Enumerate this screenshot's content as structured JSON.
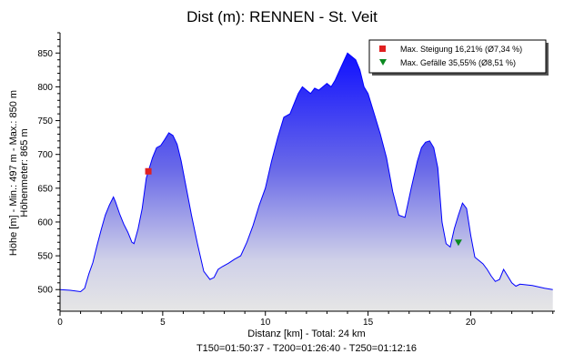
{
  "chart_data": {
    "type": "area",
    "title": "Dist (m): RENNEN - St. Veit",
    "xlabel": "Distanz [km] - Total: 24 km",
    "xlabel2": "T150=01:50:37 - T200=01:26:40 - T250=01:12:16",
    "ylabel": "Höhe [m] - Min.: 497 m - Max.: 850 m",
    "ylabel2": "Höhenmeter: 865 m",
    "xlim": [
      0,
      24.1
    ],
    "ylim": [
      468,
      880
    ],
    "xticks": [
      0,
      5,
      10,
      15,
      20
    ],
    "yticks": [
      500,
      550,
      600,
      650,
      700,
      750,
      800,
      850
    ],
    "grid": false,
    "legend": {
      "placement": "top-right",
      "items": [
        {
          "label": "Max. Steigung 16,21% (Ø7,34 %)",
          "marker": "square",
          "color": "#e02020"
        },
        {
          "label": "Max. Gefälle 35,55% (Ø8,51 %)",
          "marker": "triangle-down",
          "color": "#0a8a20"
        }
      ]
    },
    "series": [
      {
        "color": "#0000ff",
        "x": [
          0,
          0.5,
          1.0,
          1.2,
          1.4,
          1.6,
          1.8,
          2.0,
          2.2,
          2.4,
          2.6,
          2.7,
          2.9,
          3.1,
          3.3,
          3.5,
          3.6,
          3.8,
          4.0,
          4.2,
          4.5,
          4.7,
          4.9,
          5.1,
          5.3,
          5.5,
          5.7,
          5.9,
          6.1,
          6.4,
          6.7,
          7.0,
          7.3,
          7.5,
          7.7,
          7.9,
          8.2,
          8.5,
          8.8,
          9.1,
          9.4,
          9.7,
          10.0,
          10.3,
          10.6,
          10.9,
          11.2,
          11.4,
          11.6,
          11.8,
          12.0,
          12.2,
          12.4,
          12.6,
          12.8,
          13.0,
          13.2,
          13.4,
          13.7,
          14.0,
          14.2,
          14.4,
          14.6,
          14.8,
          15.0,
          15.3,
          15.6,
          15.9,
          16.2,
          16.5,
          16.8,
          17.1,
          17.4,
          17.6,
          17.8,
          18.0,
          18.2,
          18.4,
          18.6,
          18.8,
          19.0,
          19.2,
          19.4,
          19.6,
          19.8,
          20.0,
          20.2,
          20.4,
          20.6,
          20.8,
          21.0,
          21.2,
          21.4,
          21.6,
          21.8,
          22.0,
          22.2,
          22.4,
          22.7,
          23.0,
          23.3,
          23.6,
          24.0
        ],
        "y": [
          500,
          499,
          497,
          502,
          523,
          540,
          565,
          588,
          610,
          625,
          637,
          630,
          612,
          597,
          585,
          570,
          568,
          590,
          620,
          665,
          695,
          710,
          713,
          722,
          732,
          728,
          715,
          690,
          658,
          610,
          567,
          527,
          515,
          518,
          530,
          534,
          539,
          545,
          550,
          570,
          595,
          625,
          650,
          690,
          725,
          755,
          760,
          775,
          790,
          800,
          795,
          790,
          798,
          795,
          800,
          805,
          800,
          810,
          830,
          850,
          845,
          840,
          825,
          800,
          790,
          760,
          730,
          695,
          645,
          610,
          607,
          650,
          690,
          710,
          718,
          720,
          710,
          680,
          600,
          568,
          563,
          590,
          610,
          628,
          620,
          580,
          548,
          543,
          538,
          530,
          520,
          512,
          515,
          530,
          520,
          510,
          505,
          508,
          507,
          506,
          504,
          502,
          500
        ]
      }
    ],
    "markers": [
      {
        "type": "square",
        "x": 4.3,
        "y": 675,
        "color": "#e02020"
      },
      {
        "type": "triangle-down",
        "x": 19.4,
        "y": 570,
        "color": "#0a8a20"
      }
    ]
  }
}
